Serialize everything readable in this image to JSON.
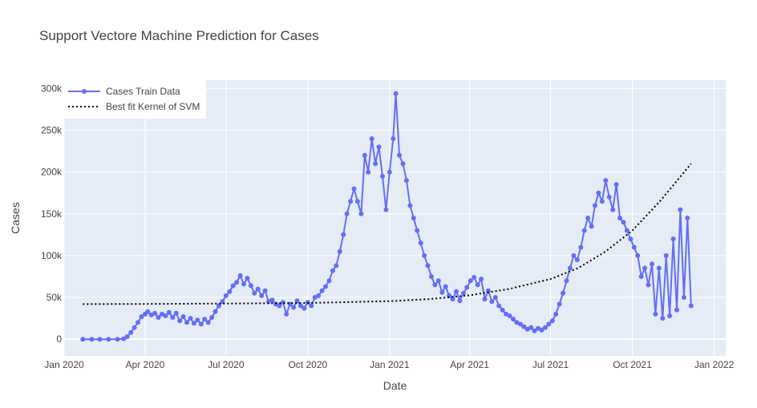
{
  "chart_data": {
    "type": "line",
    "title": "Support Vectore Machine Prediction for Cases",
    "xlabel": "Date",
    "ylabel": "Cases",
    "x_range": [
      "2020-01-01",
      "2022-01-14"
    ],
    "ylim": [
      -20000,
      310000
    ],
    "x_ticks": [
      {
        "date": "2020-01-01",
        "label": "Jan 2020"
      },
      {
        "date": "2020-04-01",
        "label": "Apr 2020"
      },
      {
        "date": "2020-07-01",
        "label": "Jul 2020"
      },
      {
        "date": "2020-10-01",
        "label": "Oct 2020"
      },
      {
        "date": "2021-01-01",
        "label": "Jan 2021"
      },
      {
        "date": "2021-04-01",
        "label": "Apr 2021"
      },
      {
        "date": "2021-07-01",
        "label": "Jul 2021"
      },
      {
        "date": "2021-10-01",
        "label": "Oct 2021"
      },
      {
        "date": "2022-01-01",
        "label": "Jan 2022"
      }
    ],
    "y_ticks": [
      {
        "value": 0,
        "label": "0"
      },
      {
        "value": 50000,
        "label": "50k"
      },
      {
        "value": 100000,
        "label": "100k"
      },
      {
        "value": 150000,
        "label": "150k"
      },
      {
        "value": 200000,
        "label": "200k"
      },
      {
        "value": 250000,
        "label": "250k"
      },
      {
        "value": 300000,
        "label": "300k"
      }
    ],
    "grid": true,
    "legend_position": "top-left",
    "series": [
      {
        "name": "Cases Train Data",
        "color": "#636efa",
        "mode": "lines+markers",
        "points": [
          [
            "2020-01-22",
            0
          ],
          [
            "2020-02-01",
            0
          ],
          [
            "2020-02-10",
            0
          ],
          [
            "2020-02-20",
            0
          ],
          [
            "2020-03-01",
            0
          ],
          [
            "2020-03-08",
            500
          ],
          [
            "2020-03-12",
            3000
          ],
          [
            "2020-03-16",
            8000
          ],
          [
            "2020-03-20",
            14000
          ],
          [
            "2020-03-24",
            20000
          ],
          [
            "2020-03-28",
            27000
          ],
          [
            "2020-04-01",
            30000
          ],
          [
            "2020-04-04",
            33000
          ],
          [
            "2020-04-08",
            29000
          ],
          [
            "2020-04-12",
            31000
          ],
          [
            "2020-04-16",
            26000
          ],
          [
            "2020-04-20",
            30000
          ],
          [
            "2020-04-24",
            28000
          ],
          [
            "2020-04-28",
            32000
          ],
          [
            "2020-05-02",
            26000
          ],
          [
            "2020-05-06",
            31000
          ],
          [
            "2020-05-10",
            22000
          ],
          [
            "2020-05-14",
            27000
          ],
          [
            "2020-05-18",
            20000
          ],
          [
            "2020-05-22",
            25000
          ],
          [
            "2020-05-26",
            19000
          ],
          [
            "2020-05-30",
            23000
          ],
          [
            "2020-06-03",
            18000
          ],
          [
            "2020-06-07",
            24000
          ],
          [
            "2020-06-11",
            20000
          ],
          [
            "2020-06-15",
            26000
          ],
          [
            "2020-06-19",
            33000
          ],
          [
            "2020-06-23",
            40000
          ],
          [
            "2020-06-27",
            45000
          ],
          [
            "2020-07-01",
            52000
          ],
          [
            "2020-07-05",
            57000
          ],
          [
            "2020-07-09",
            64000
          ],
          [
            "2020-07-13",
            68000
          ],
          [
            "2020-07-17",
            76000
          ],
          [
            "2020-07-21",
            66000
          ],
          [
            "2020-07-25",
            73000
          ],
          [
            "2020-07-29",
            64000
          ],
          [
            "2020-08-02",
            55000
          ],
          [
            "2020-08-06",
            60000
          ],
          [
            "2020-08-10",
            52000
          ],
          [
            "2020-08-14",
            58000
          ],
          [
            "2020-08-18",
            45000
          ],
          [
            "2020-08-22",
            47000
          ],
          [
            "2020-08-26",
            42000
          ],
          [
            "2020-08-30",
            40000
          ],
          [
            "2020-09-03",
            44000
          ],
          [
            "2020-09-07",
            30000
          ],
          [
            "2020-09-11",
            42000
          ],
          [
            "2020-09-15",
            38000
          ],
          [
            "2020-09-19",
            46000
          ],
          [
            "2020-09-23",
            40000
          ],
          [
            "2020-09-27",
            37000
          ],
          [
            "2020-10-01",
            44000
          ],
          [
            "2020-10-05",
            40000
          ],
          [
            "2020-10-09",
            50000
          ],
          [
            "2020-10-13",
            52000
          ],
          [
            "2020-10-17",
            58000
          ],
          [
            "2020-10-21",
            63000
          ],
          [
            "2020-10-25",
            70000
          ],
          [
            "2020-10-29",
            82000
          ],
          [
            "2020-11-02",
            88000
          ],
          [
            "2020-11-06",
            105000
          ],
          [
            "2020-11-10",
            125000
          ],
          [
            "2020-11-14",
            150000
          ],
          [
            "2020-11-18",
            165000
          ],
          [
            "2020-11-22",
            180000
          ],
          [
            "2020-11-26",
            165000
          ],
          [
            "2020-11-30",
            150000
          ],
          [
            "2020-12-04",
            220000
          ],
          [
            "2020-12-08",
            200000
          ],
          [
            "2020-12-12",
            240000
          ],
          [
            "2020-12-16",
            210000
          ],
          [
            "2020-12-20",
            230000
          ],
          [
            "2020-12-24",
            195000
          ],
          [
            "2020-12-28",
            155000
          ],
          [
            "2021-01-01",
            200000
          ],
          [
            "2021-01-05",
            240000
          ],
          [
            "2021-01-08",
            294000
          ],
          [
            "2021-01-12",
            220000
          ],
          [
            "2021-01-16",
            210000
          ],
          [
            "2021-01-20",
            190000
          ],
          [
            "2021-01-24",
            160000
          ],
          [
            "2021-01-28",
            145000
          ],
          [
            "2021-02-01",
            130000
          ],
          [
            "2021-02-05",
            115000
          ],
          [
            "2021-02-09",
            100000
          ],
          [
            "2021-02-13",
            88000
          ],
          [
            "2021-02-17",
            75000
          ],
          [
            "2021-02-21",
            65000
          ],
          [
            "2021-02-25",
            70000
          ],
          [
            "2021-03-01",
            56000
          ],
          [
            "2021-03-05",
            63000
          ],
          [
            "2021-03-09",
            52000
          ],
          [
            "2021-03-13",
            48000
          ],
          [
            "2021-03-17",
            57000
          ],
          [
            "2021-03-21",
            46000
          ],
          [
            "2021-03-25",
            55000
          ],
          [
            "2021-03-29",
            62000
          ],
          [
            "2021-04-02",
            70000
          ],
          [
            "2021-04-06",
            74000
          ],
          [
            "2021-04-10",
            65000
          ],
          [
            "2021-04-14",
            72000
          ],
          [
            "2021-04-18",
            48000
          ],
          [
            "2021-04-22",
            58000
          ],
          [
            "2021-04-26",
            45000
          ],
          [
            "2021-04-30",
            50000
          ],
          [
            "2021-05-04",
            40000
          ],
          [
            "2021-05-08",
            35000
          ],
          [
            "2021-05-12",
            30000
          ],
          [
            "2021-05-16",
            28000
          ],
          [
            "2021-05-20",
            24000
          ],
          [
            "2021-05-24",
            20000
          ],
          [
            "2021-05-28",
            18000
          ],
          [
            "2021-06-01",
            15000
          ],
          [
            "2021-06-05",
            12000
          ],
          [
            "2021-06-09",
            14000
          ],
          [
            "2021-06-13",
            10000
          ],
          [
            "2021-06-17",
            13000
          ],
          [
            "2021-06-21",
            11000
          ],
          [
            "2021-06-25",
            14000
          ],
          [
            "2021-06-29",
            18000
          ],
          [
            "2021-07-03",
            22000
          ],
          [
            "2021-07-07",
            30000
          ],
          [
            "2021-07-11",
            42000
          ],
          [
            "2021-07-15",
            55000
          ],
          [
            "2021-07-19",
            70000
          ],
          [
            "2021-07-23",
            85000
          ],
          [
            "2021-07-27",
            100000
          ],
          [
            "2021-07-31",
            95000
          ],
          [
            "2021-08-04",
            110000
          ],
          [
            "2021-08-08",
            130000
          ],
          [
            "2021-08-12",
            145000
          ],
          [
            "2021-08-16",
            135000
          ],
          [
            "2021-08-20",
            160000
          ],
          [
            "2021-08-24",
            175000
          ],
          [
            "2021-08-28",
            165000
          ],
          [
            "2021-09-01",
            190000
          ],
          [
            "2021-09-05",
            170000
          ],
          [
            "2021-09-09",
            155000
          ],
          [
            "2021-09-13",
            185000
          ],
          [
            "2021-09-17",
            145000
          ],
          [
            "2021-09-21",
            140000
          ],
          [
            "2021-09-25",
            130000
          ],
          [
            "2021-09-29",
            120000
          ],
          [
            "2021-10-03",
            110000
          ],
          [
            "2021-10-07",
            100000
          ],
          [
            "2021-10-11",
            75000
          ],
          [
            "2021-10-15",
            85000
          ],
          [
            "2021-10-19",
            65000
          ],
          [
            "2021-10-23",
            90000
          ],
          [
            "2021-10-27",
            30000
          ],
          [
            "2021-10-31",
            85000
          ],
          [
            "2021-11-04",
            25000
          ],
          [
            "2021-11-08",
            100000
          ],
          [
            "2021-11-12",
            28000
          ],
          [
            "2021-11-16",
            120000
          ],
          [
            "2021-11-20",
            35000
          ],
          [
            "2021-11-24",
            155000
          ],
          [
            "2021-11-28",
            50000
          ],
          [
            "2021-12-02",
            145000
          ],
          [
            "2021-12-06",
            40000
          ]
        ]
      },
      {
        "name": "Best fit Kernel of SVM",
        "color": "#000000",
        "mode": "lines",
        "dash": "dot",
        "points": [
          [
            "2020-01-22",
            42000
          ],
          [
            "2020-04-01",
            42200
          ],
          [
            "2020-07-01",
            42600
          ],
          [
            "2020-10-01",
            43300
          ],
          [
            "2021-01-01",
            45500
          ],
          [
            "2021-02-15",
            48000
          ],
          [
            "2021-04-01",
            52500
          ],
          [
            "2021-05-15",
            60000
          ],
          [
            "2021-07-01",
            72000
          ],
          [
            "2021-08-01",
            85000
          ],
          [
            "2021-09-01",
            105000
          ],
          [
            "2021-10-01",
            130000
          ],
          [
            "2021-11-01",
            165000
          ],
          [
            "2021-12-06",
            210000
          ]
        ]
      }
    ]
  }
}
